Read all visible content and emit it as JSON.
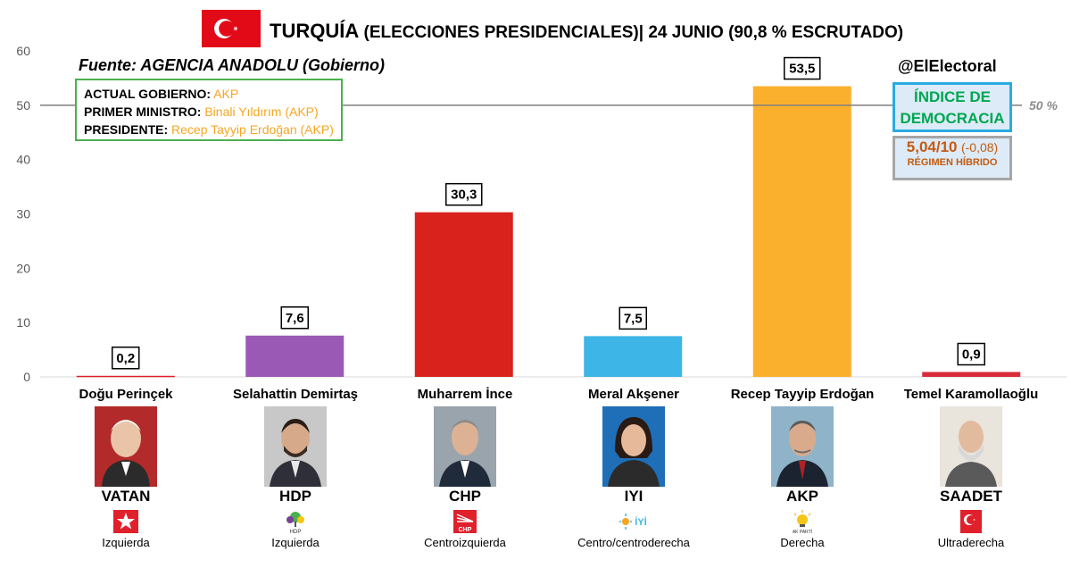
{
  "header": {
    "title_main": "TURQUÍA",
    "title_rest": " (ELECCIONES PRESIDENCIALES)| 24 JUNIO (90,8 % ESCRUTADO)",
    "flag_icon": "turkey-flag-icon"
  },
  "source": "Fuente: AGENCIA ANADOLU (Gobierno)",
  "government": {
    "gov_key": "ACTUAL GOBIERNO:",
    "gov_val": "AKP",
    "pm_key": "PRIMER MINISTRO:",
    "pm_val": "Binali Yıldırım (AKP)",
    "pres_key": "PRESIDENTE:",
    "pres_val": "Recep Tayyip Erdoğan (AKP)"
  },
  "handle": "@ElElectoral",
  "democracy": {
    "title_line1": "ÍNDICE DE",
    "title_line2": "DEMOCRACIA",
    "score": "5,04/10",
    "delta": "(-0,08)",
    "regime": "RÉGIMEN HÍBRIDO"
  },
  "chart_data": {
    "type": "bar",
    "categories": [
      "Doğu Perinçek",
      "Selahattin Demirtaş",
      "Muharrem İnce",
      "Meral Akşener",
      "Recep Tayyip Erdoğan",
      "Temel Karamollaoğlu"
    ],
    "values": [
      0.2,
      7.6,
      30.3,
      7.5,
      53.5,
      0.9
    ],
    "value_labels": [
      "0,2",
      "7,6",
      "30,3",
      "7,5",
      "53,5",
      "0,9"
    ],
    "colors": [
      "#e0202b",
      "#9b59b6",
      "#d9221c",
      "#3db5e6",
      "#fbb02d",
      "#d92b3a"
    ],
    "ylim": [
      0,
      60
    ],
    "yticks": [
      0,
      10,
      20,
      30,
      40,
      50,
      60
    ],
    "reference_line": {
      "value": 50,
      "label": "50 %"
    },
    "grid": false
  },
  "candidates": [
    {
      "party": "VATAN",
      "ideology": "Izquierda",
      "logo_icon": "vatan-star-logo-icon",
      "photo": "candidate-photo-perincek"
    },
    {
      "party": "HDP",
      "ideology": "Izquierda",
      "logo_icon": "hdp-tree-logo-icon",
      "photo": "candidate-photo-demirtas"
    },
    {
      "party": "CHP",
      "ideology": "Centroizquierda",
      "logo_icon": "chp-six-arrows-logo-icon",
      "photo": "candidate-photo-ince"
    },
    {
      "party": "IYI",
      "ideology": "Centro/centroderecha",
      "logo_icon": "iyi-sun-logo-icon",
      "photo": "candidate-photo-aksener"
    },
    {
      "party": "AKP",
      "ideology": "Derecha",
      "logo_icon": "akp-lightbulb-logo-icon",
      "photo": "candidate-photo-erdogan"
    },
    {
      "party": "SAADET",
      "ideology": "Ultraderecha",
      "logo_icon": "saadet-crescent-logo-icon",
      "photo": "candidate-photo-karamollaoglu"
    }
  ]
}
